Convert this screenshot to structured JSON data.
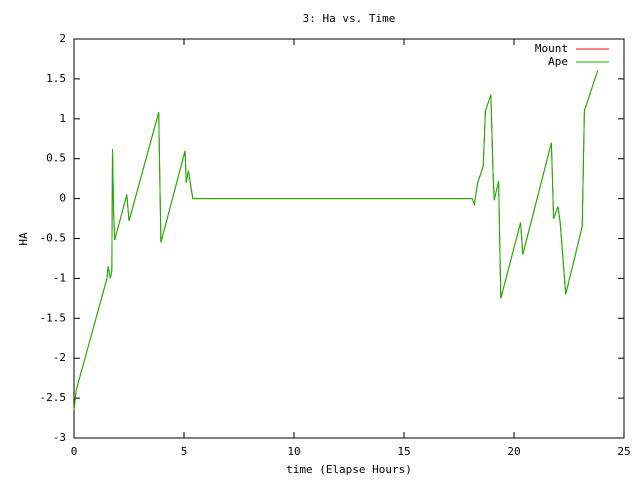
{
  "chart_data": {
    "type": "line",
    "title": "3: Ha vs. Time",
    "x_label": "time (Elapse Hours)",
    "y_label": "HA",
    "xlim": [
      0,
      25
    ],
    "ylim": [
      -3,
      2
    ],
    "xticks": [
      0,
      5,
      10,
      15,
      20,
      25
    ],
    "yticks": [
      -3,
      -2.5,
      -2,
      -1.5,
      -1,
      -0.5,
      0,
      0.5,
      1,
      1.5,
      2
    ],
    "legend": "top-right",
    "grid": false,
    "x": [
      0,
      0.1,
      0.5,
      1.0,
      1.5,
      1.55,
      1.65,
      1.72,
      1.75,
      1.8,
      1.85,
      2.4,
      2.5,
      3.85,
      3.95,
      5.05,
      5.1,
      5.2,
      5.4,
      18.1,
      18.2,
      18.35,
      18.6,
      18.7,
      18.95,
      19.05,
      19.1,
      19.3,
      19.4,
      20.3,
      20.4,
      21.7,
      21.8,
      22.0,
      22.1,
      22.35,
      23.1,
      23.2,
      23.8
    ],
    "series": [
      {
        "name": "Mount",
        "color": "#ff0000",
        "values": [
          -2.65,
          -2.4,
          -2.0,
          -1.5,
          -1.0,
          -0.85,
          -1.0,
          -0.9,
          0.62,
          -0.15,
          -0.52,
          0.05,
          -0.28,
          1.08,
          -0.55,
          0.6,
          0.2,
          0.35,
          0,
          0,
          -0.07,
          0.2,
          0.4,
          1.1,
          1.3,
          0.3,
          -0.02,
          0.22,
          -1.25,
          -0.3,
          -0.7,
          0.7,
          -0.25,
          -0.1,
          -0.3,
          -1.2,
          -0.35,
          1.1,
          1.6
        ]
      },
      {
        "name": "Ape",
        "color": "#00c000",
        "values": [
          -2.65,
          -2.4,
          -2.0,
          -1.5,
          -1.0,
          -0.85,
          -1.0,
          -0.9,
          0.62,
          -0.15,
          -0.52,
          0.05,
          -0.28,
          1.08,
          -0.55,
          0.6,
          0.2,
          0.35,
          0,
          0,
          -0.07,
          0.2,
          0.4,
          1.1,
          1.3,
          0.3,
          -0.02,
          0.22,
          -1.25,
          -0.3,
          -0.7,
          0.7,
          -0.25,
          -0.1,
          -0.3,
          -1.2,
          -0.35,
          1.1,
          1.6
        ]
      }
    ]
  }
}
